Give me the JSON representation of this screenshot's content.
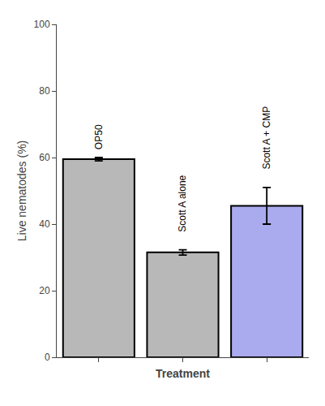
{
  "chart_data": {
    "type": "bar",
    "categories": [
      "OP50",
      "Scott A alone",
      "Scott A + CMP"
    ],
    "values": [
      59.5,
      31.5,
      45.5
    ],
    "errors": [
      0.5,
      0.8,
      5.5
    ],
    "colors": [
      "#b8b8b8",
      "#b8b8b8",
      "#aaaaee"
    ],
    "xlabel": "Treatment",
    "ylabel": "Live nematodes (%)",
    "ylim": [
      0,
      100
    ],
    "yticks": [
      0,
      20,
      40,
      60,
      80,
      100
    ],
    "grid": false,
    "tick_labels": "y",
    "annotations": [
      {
        "category": "OP50",
        "y": 62,
        "text": "OP50"
      },
      {
        "category": "Scott A alone",
        "y": 37,
        "text": "Scott A alone"
      },
      {
        "category": "Scott A + CMP",
        "y": 56,
        "text": "Scott A + CMP"
      }
    ]
  }
}
